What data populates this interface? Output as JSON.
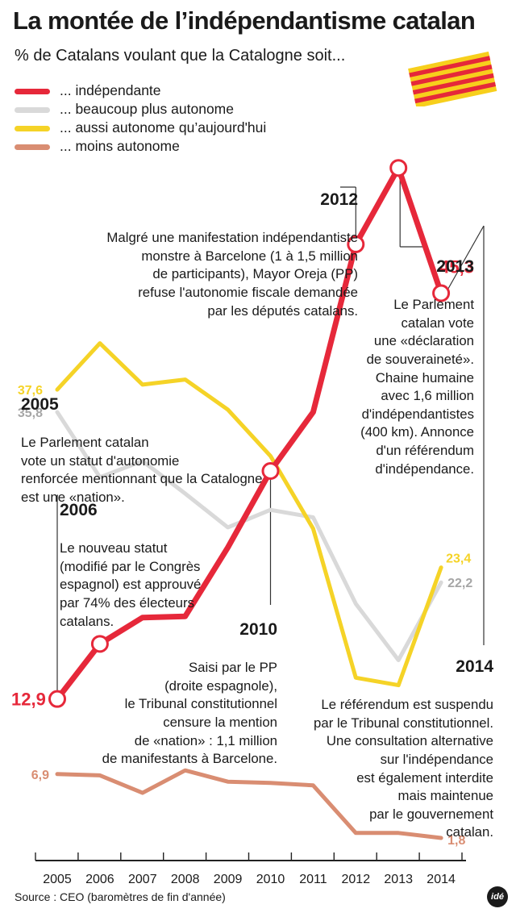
{
  "title": "La montée de l’indépendantisme catalan",
  "subtitle": "% de Catalans voulant que la Catalogne soit...",
  "source": "Source : CEO (baromètres de fin d'année)",
  "logo_text": "idé",
  "colors": {
    "independent": "#e6283a",
    "more_autonomous": "#d9d9d9",
    "same_autonomous": "#f5d327",
    "less_autonomous": "#d98d72",
    "flag_yellow": "#f7cf1c",
    "flag_red": "#e5283a"
  },
  "annotations": [
    {
      "year": "2012",
      "text": "Malgré une manifestation indépendantiste\nmonstre à Barcelone (1 à 1,5 million\nde participants), Mayor Oreja (PP)\nrefuse l'autonomie fiscale demandée\npar les députés catalans."
    },
    {
      "year": "2013",
      "text": "Le Parlement\ncatalan vote\nune «déclaration\nde souveraineté».\nChaine humaine\navec 1,6 million\nd'indépendantistes\n(400 km). Annonce\nd'un référendum\nd'indépendance."
    },
    {
      "year": "2005",
      "text": "Le Parlement catalan\nvote un statut d'autonomie\nrenforcée mentionnant que la Catalogne\nest une «nation»."
    },
    {
      "year": "2006",
      "text": "Le nouveau statut\n(modifié par le Congrès\nespagnol) est approuvé\npar 74% des électeurs\ncatalans."
    },
    {
      "year": "2010",
      "text": "Saisi par le PP\n(droite espagnole),\nle Tribunal constitutionnel\ncensure la mention\nde «nation» : 1,1 million\nde manifestants à Barcelone."
    },
    {
      "year": "2014",
      "text": "Le référendum est suspendu\npar le Tribunal constitutionnel.\nUne consultation alternative\nsur l'indépendance\nest également interdite\nmais maintenue\npar le gouvernement\ncatalan."
    }
  ],
  "chart_data": {
    "type": "line",
    "title": "La montée de l’indépendantisme catalan",
    "subtitle": "% de Catalans voulant que la Catalogne soit...",
    "x": [
      "2005",
      "2006",
      "2007",
      "2008",
      "2009",
      "2010",
      "2011",
      "2012",
      "2013",
      "2014"
    ],
    "ylim": [
      0,
      50
    ],
    "grid": false,
    "legend_position": "top-left",
    "series": [
      {
        "name": "... indépendante",
        "color": "#e6283a",
        "values": [
          12.9,
          17.3,
          19.4,
          19.5,
          25.0,
          31.1,
          35.8,
          49.2,
          55.3,
          45.3
        ],
        "start_label": "12,9",
        "end_label": "45,3"
      },
      {
        "name": "... beaucoup plus autonome",
        "color": "#d9d9d9",
        "values": [
          35.8,
          30.6,
          31.9,
          29.3,
          26.6,
          28.0,
          27.4,
          20.5,
          16.0,
          22.2
        ],
        "start_label": "35,8",
        "end_label": "22,2"
      },
      {
        "name": "... aussi autonome qu’aujourd'hui",
        "color": "#f5d327",
        "values": [
          37.6,
          41.3,
          38.0,
          38.4,
          36.0,
          32.3,
          26.5,
          14.6,
          14.0,
          23.4
        ],
        "start_label": "37,6",
        "end_label": "23,4"
      },
      {
        "name": "... moins autonome",
        "color": "#d98d72",
        "values": [
          6.9,
          6.8,
          5.4,
          7.2,
          6.3,
          6.2,
          6.0,
          2.2,
          2.2,
          1.8
        ],
        "start_label": "6,9",
        "end_label": "1,8"
      }
    ]
  }
}
